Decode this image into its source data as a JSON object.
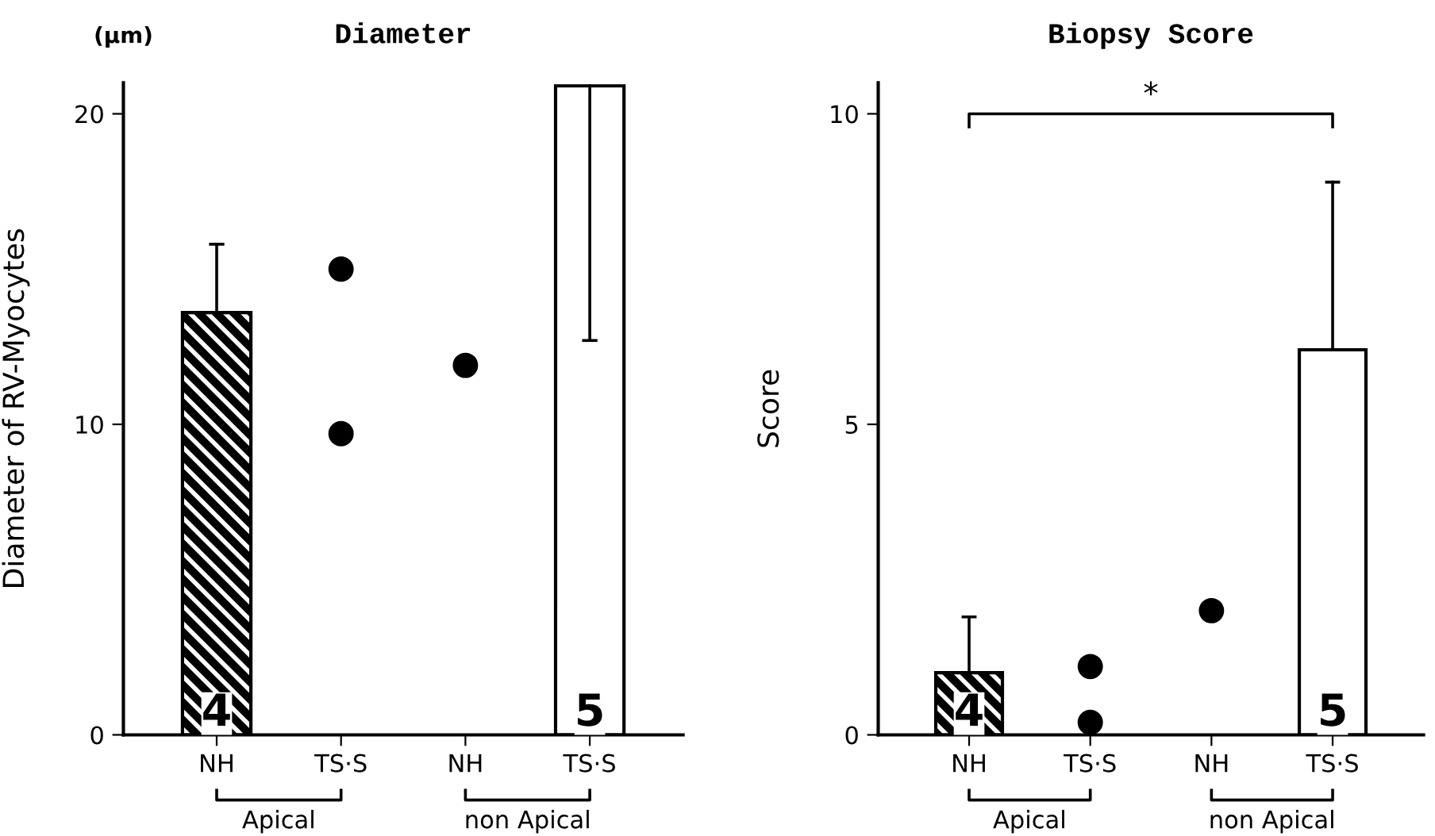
{
  "chart_data": [
    {
      "type": "bar",
      "title": "Diameter",
      "ylabel": "Diameter of RV-Myocytes",
      "categories": [
        "NH",
        "TS·S",
        "NH",
        "TS·S"
      ],
      "series": [
        {
          "type": "bar",
          "color": "#000000",
          "colors": [
            "#000000",
            null,
            null,
            "#ffffff"
          ],
          "values": [
            13.6,
            null,
            null,
            20.9
          ],
          "errors": [
            [
              13.6,
              15.8
            ],
            null,
            null,
            [
              12.7,
              20.9
            ]
          ]
        },
        {
          "type": "scatter",
          "color": "#000000",
          "values": [
            null,
            15.0,
            11.9,
            null
          ]
        },
        {
          "type": "scatter",
          "color": "#000000",
          "values": [
            null,
            9.7,
            null,
            null
          ]
        }
      ],
      "ylim": [
        0,
        21
      ],
      "yticks": [
        0,
        10,
        20
      ],
      "grid": false,
      "marker": "circle",
      "annotations": [
        "4",
        "5",
        "(μm)",
        "Apical",
        "non Apical"
      ]
    },
    {
      "type": "bar",
      "title": "Biopsy Score",
      "ylabel": "Score",
      "categories": [
        "NH",
        "TS·S",
        "NH",
        "TS·S"
      ],
      "series": [
        {
          "type": "bar",
          "color": "#000000",
          "colors": [
            "#000000",
            null,
            null,
            "#ffffff"
          ],
          "values": [
            1.0,
            null,
            null,
            6.2
          ],
          "errors": [
            [
              1.0,
              1.9
            ],
            null,
            null,
            [
              6.2,
              8.9
            ]
          ]
        },
        {
          "type": "scatter",
          "color": "#000000",
          "values": [
            null,
            1.1,
            2.0,
            null
          ]
        },
        {
          "type": "scatter",
          "color": "#000000",
          "values": [
            null,
            0.2,
            null,
            null
          ]
        }
      ],
      "ylim": [
        0,
        10.5
      ],
      "yticks": [
        0,
        5,
        10
      ],
      "grid": false,
      "marker": "circle",
      "annotations": [
        "4",
        "5",
        "*",
        "Apical",
        "non Apical"
      ]
    }
  ]
}
